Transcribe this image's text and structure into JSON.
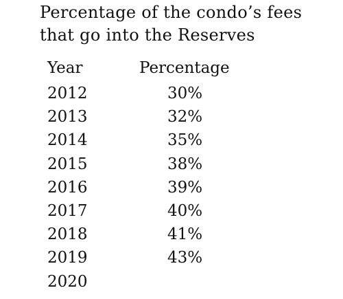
{
  "chart_data": {
    "type": "table",
    "title_lines": [
      "Percentage of the condo’s fees",
      "that go into the Reserves"
    ],
    "columns": [
      "Year",
      "Percentage"
    ],
    "rows": [
      {
        "year": "2012",
        "percentage": "30%"
      },
      {
        "year": "2013",
        "percentage": "32%"
      },
      {
        "year": "2014",
        "percentage": "35%"
      },
      {
        "year": "2015",
        "percentage": "38%"
      },
      {
        "year": "2016",
        "percentage": "39%"
      },
      {
        "year": "2017",
        "percentage": "40%"
      },
      {
        "year": "2018",
        "percentage": "41%"
      },
      {
        "year": "2019",
        "percentage": "43%"
      },
      {
        "year": "2020",
        "percentage": ""
      }
    ]
  }
}
